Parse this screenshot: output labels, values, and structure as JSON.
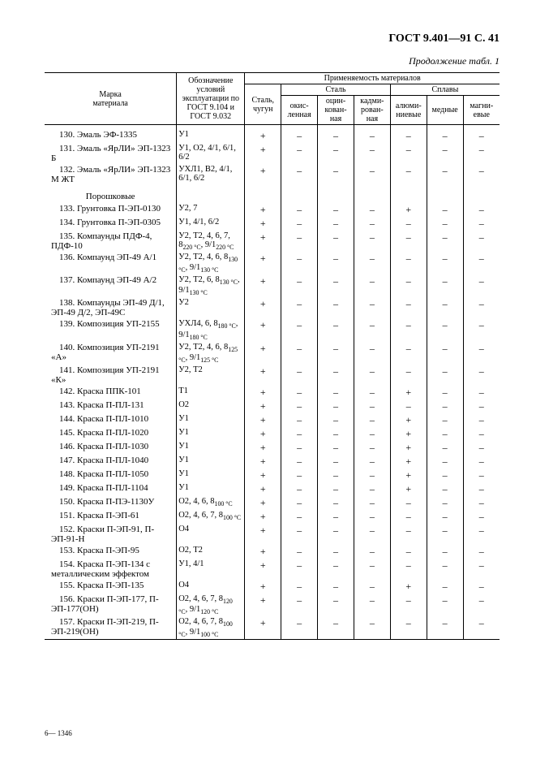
{
  "page_header": "ГОСТ 9.401—91 С. 41",
  "table_caption": "Продолжение табл. 1",
  "footer": "6— 1346",
  "col_headers": {
    "material_brand": "Марка\nматериала",
    "conditions": "Обозначение условий эксплуатации по ГОСТ 9.104 и ГОСТ 9.032",
    "applicability": "Применяемость материалов",
    "steel_chugun": "Сталь, чугун",
    "steel_group": "Сталь",
    "okis": "окис-\nленная",
    "ocink": "оцин-\nкован-\nная",
    "kadmi": "кадми-\nрован-\nная",
    "alloys": "Сплавы",
    "alyum": "алюми-\nниевые",
    "med": "медные",
    "mag": "магни-\nевые"
  },
  "section": "Порошковые",
  "rows": [
    {
      "mat": "130. Эмаль ЭФ-1335",
      "cond": "У1",
      "m": [
        "+",
        "–",
        "–",
        "–",
        "–",
        "–",
        "–"
      ],
      "indent": true
    },
    {
      "mat": "131. Эмаль «ЯрЛИ» ЭП-1323 Б",
      "cond": "У1, О2, 4/1, 6/1, 6/2",
      "m": [
        "+",
        "–",
        "–",
        "–",
        "–",
        "–",
        "–"
      ],
      "indent": true
    },
    {
      "mat": "132. Эмаль «ЯрЛИ» ЭП-1323 М ЖТ",
      "cond": "УХЛ1, В2, 4/1, 6/1, 6/2",
      "m": [
        "+",
        "–",
        "–",
        "–",
        "–",
        "–",
        "–"
      ],
      "indent": true
    },
    {
      "section": true,
      "mat": "Порошковые"
    },
    {
      "mat": "133. Грунтовка П-ЭП-0130",
      "cond": "У2, 7",
      "m": [
        "+",
        "–",
        "–",
        "–",
        "+",
        "–",
        "–"
      ],
      "indent": true
    },
    {
      "mat": "134. Грунтовка П-ЭП-0305",
      "cond": "У1, 4/1, 6/2",
      "m": [
        "+",
        "–",
        "–",
        "–",
        "–",
        "–",
        "–"
      ],
      "indent": true
    },
    {
      "mat": "135. Компаунды ПДФ-4, ПДФ-10",
      "cond": "У2, Т2, 4, 6, 7, 8₂₂₀ °C, 9/1₂₂₀ °C",
      "m": [
        "+",
        "–",
        "–",
        "–",
        "–",
        "–",
        "–"
      ],
      "indent": true
    },
    {
      "mat": "136. Компаунд ЭП-49 А/1",
      "cond": "У2, Т2, 4, 6, 8₁₃₀ °C, 9/1₁₃₀ °C",
      "m": [
        "+",
        "–",
        "–",
        "–",
        "–",
        "–",
        "–"
      ],
      "indent": true
    },
    {
      "mat": "137. Компаунд ЭП-49 А/2",
      "cond": "У2, Т2, 6, 8₁₃₀ °C, 9/1₁₃₀ °C",
      "m": [
        "+",
        "–",
        "–",
        "–",
        "–",
        "–",
        "–"
      ],
      "indent": true
    },
    {
      "mat": "138. Компаунды ЭП-49 Д/1, ЭП-49 Д/2, ЭП-49С",
      "cond": "У2",
      "m": [
        "+",
        "–",
        "–",
        "–",
        "–",
        "–",
        "–"
      ],
      "indent": true
    },
    {
      "mat": "139. Композиция УП-2155",
      "cond": "УХЛ4, 6, 8₁₈₀ °C, 9/1₁₈₀ °C",
      "m": [
        "+",
        "–",
        "–",
        "–",
        "–",
        "–",
        "–"
      ],
      "indent": true
    },
    {
      "mat": "140. Композиция УП-2191 «А»",
      "cond": "У2, Т2, 4, 6, 8₁₂₅ °C, 9/1₁₂₅ °C",
      "m": [
        "+",
        "–",
        "–",
        "–",
        "–",
        "–",
        "–"
      ],
      "indent": true
    },
    {
      "mat": "141. Композиция УП-2191 «К»",
      "cond": "У2, Т2",
      "m": [
        "+",
        "–",
        "–",
        "–",
        "–",
        "–",
        "–"
      ],
      "indent": true
    },
    {
      "mat": "142. Краска ППК-101",
      "cond": "Т1",
      "m": [
        "+",
        "–",
        "–",
        "–",
        "+",
        "–",
        "–"
      ],
      "indent": true
    },
    {
      "mat": "143. Краска П-ПЛ-131",
      "cond": "О2",
      "m": [
        "+",
        "–",
        "–",
        "–",
        "–",
        "–",
        "–"
      ],
      "indent": true
    },
    {
      "mat": "144. Краска П-ПЛ-1010",
      "cond": "У1",
      "m": [
        "+",
        "–",
        "–",
        "–",
        "+",
        "–",
        "–"
      ],
      "indent": true
    },
    {
      "mat": "145. Краска П-ПЛ-1020",
      "cond": "У1",
      "m": [
        "+",
        "–",
        "–",
        "–",
        "+",
        "–",
        "–"
      ],
      "indent": true
    },
    {
      "mat": "146. Краска П-ПЛ-1030",
      "cond": "У1",
      "m": [
        "+",
        "–",
        "–",
        "–",
        "+",
        "–",
        "–"
      ],
      "indent": true
    },
    {
      "mat": "147. Краска П-ПЛ-1040",
      "cond": "У1",
      "m": [
        "+",
        "–",
        "–",
        "–",
        "+",
        "–",
        "–"
      ],
      "indent": true
    },
    {
      "mat": "148. Краска П-ПЛ-1050",
      "cond": "У1",
      "m": [
        "+",
        "–",
        "–",
        "–",
        "+",
        "–",
        "–"
      ],
      "indent": true
    },
    {
      "mat": "149. Краска П-ПЛ-1104",
      "cond": "У1",
      "m": [
        "+",
        "–",
        "–",
        "–",
        "+",
        "–",
        "–"
      ],
      "indent": true
    },
    {
      "mat": "150. Краска П-ПЭ-1130У",
      "cond": "О2, 4, 6, 8₁₀₀ °C",
      "m": [
        "+",
        "–",
        "–",
        "–",
        "–",
        "–",
        "–"
      ],
      "indent": true
    },
    {
      "mat": "151. Краска П-ЭП-61",
      "cond": "О2, 4, 6, 7, 8₁₀₀ °C",
      "m": [
        "+",
        "–",
        "–",
        "–",
        "–",
        "–",
        "–"
      ],
      "indent": true
    },
    {
      "mat": "152. Краски П-ЭП-91, П-ЭП-91-Н",
      "cond": "О4",
      "m": [
        "+",
        "–",
        "–",
        "–",
        "–",
        "–",
        "–"
      ],
      "indent": true
    },
    {
      "mat": "153. Краска П-ЭП-95",
      "cond": "О2, Т2",
      "m": [
        "+",
        "–",
        "–",
        "–",
        "–",
        "–",
        "–"
      ],
      "indent": true
    },
    {
      "mat": "154. Краска П-ЭП-134 с металлическим эффектом",
      "cond": "У1, 4/1",
      "m": [
        "+",
        "–",
        "–",
        "–",
        "–",
        "–",
        "–"
      ],
      "indent": true
    },
    {
      "mat": "155. Краска П-ЭП-135",
      "cond": "О4",
      "m": [
        "+",
        "–",
        "–",
        "–",
        "+",
        "–",
        "–"
      ],
      "indent": true
    },
    {
      "mat": "156. Краски П-ЭП-177, П-ЭП-177(ОН)",
      "cond": "О2, 4, 6, 7, 8₁₂₀ °C, 9/1₁₂₀ °C",
      "m": [
        "+",
        "–",
        "–",
        "–",
        "–",
        "–",
        "–"
      ],
      "indent": true
    },
    {
      "mat": "157. Краски П-ЭП-219, П-ЭП-219(ОН)",
      "cond": "О2, 4, 6, 7, 8₁₀₀ °C, 9/1₁₀₀ °C",
      "m": [
        "+",
        "–",
        "–",
        "–",
        "–",
        "–",
        "–"
      ],
      "indent": true
    }
  ]
}
